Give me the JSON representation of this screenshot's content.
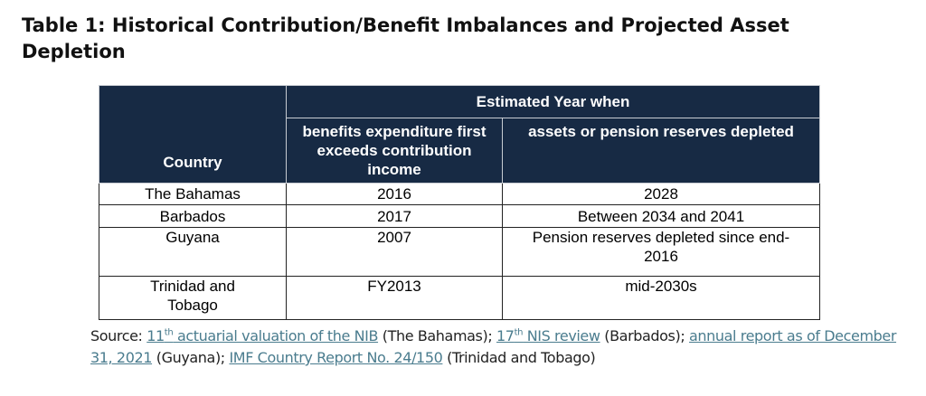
{
  "title": "Table 1:  Historical Contribution/Benefit Imbalances and Projected Asset Depletion",
  "table": {
    "header_group": "Estimated Year when",
    "col_country": "Country",
    "col_benefits": "benefits expenditure first exceeds contribution income",
    "col_assets": "assets or pension reserves depleted",
    "rows": [
      {
        "country": "The Bahamas",
        "benefits": "2016",
        "assets": "2028"
      },
      {
        "country": "Barbados",
        "benefits": "2017",
        "assets": "Between 2034 and 2041"
      },
      {
        "country": "Guyana",
        "benefits": "2007",
        "assets": "Pension reserves depleted since end-2016"
      },
      {
        "country": "Trinidad and Tobago",
        "benefits": "FY2013",
        "assets": "mid-2030s"
      }
    ]
  },
  "source": {
    "label": "Source: ",
    "link1_num": "11",
    "link1_sup": "th",
    "link1_text": " actuarial valuation of the NIB",
    "after1": " (The Bahamas); ",
    "link2_num": "17",
    "link2_sup": "th",
    "link2_text": " NIS review",
    "after2": " (Barbados); ",
    "link3_text": "annual report as of December 31, 2021",
    "after3": " (Guyana); ",
    "link4_text": "IMF Country Report No. 24/150",
    "after4": " (Trinidad and Tobago)"
  }
}
